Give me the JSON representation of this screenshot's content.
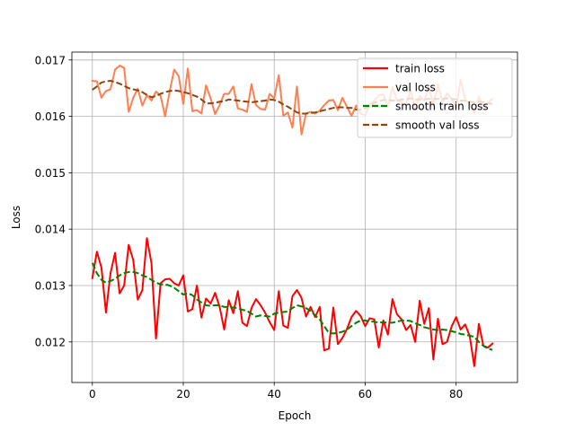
{
  "chart_data": {
    "type": "line",
    "xlabel": "Epoch",
    "ylabel": "Loss",
    "xlim": [
      -4.5,
      93.5
    ],
    "ylim": [
      0.01128,
      0.01714
    ],
    "xticks": [
      0,
      20,
      40,
      60,
      80
    ],
    "yticks": [
      0.012,
      0.013,
      0.014,
      0.015,
      0.016,
      0.017
    ],
    "ytick_labels": [
      "0.012",
      "0.013",
      "0.014",
      "0.015",
      "0.016",
      "0.017"
    ],
    "grid": true,
    "legend_position": "top-right",
    "series": [
      {
        "name": "train loss",
        "color": "#ff0000",
        "dash": "solid",
        "values": [
          0.01313,
          0.0136,
          0.01332,
          0.01252,
          0.01322,
          0.01358,
          0.01286,
          0.013,
          0.01372,
          0.01345,
          0.01275,
          0.01292,
          0.01384,
          0.0134,
          0.01206,
          0.01304,
          0.01311,
          0.01312,
          0.01304,
          0.013,
          0.01318,
          0.01254,
          0.01258,
          0.013,
          0.01243,
          0.01277,
          0.01268,
          0.01287,
          0.01262,
          0.01222,
          0.01274,
          0.01251,
          0.0129,
          0.01234,
          0.01228,
          0.0126,
          0.01276,
          0.01265,
          0.01252,
          0.01235,
          0.01221,
          0.0129,
          0.01229,
          0.01225,
          0.01281,
          0.01292,
          0.01278,
          0.01245,
          0.01262,
          0.01244,
          0.01262,
          0.01185,
          0.01188,
          0.01261,
          0.01196,
          0.01207,
          0.01223,
          0.01244,
          0.01255,
          0.01246,
          0.01228,
          0.01242,
          0.0124,
          0.0119,
          0.01238,
          0.01213,
          0.01276,
          0.01249,
          0.0124,
          0.01221,
          0.0123,
          0.012,
          0.01273,
          0.01232,
          0.0126,
          0.01169,
          0.01241,
          0.01196,
          0.012,
          0.01227,
          0.01244,
          0.01222,
          0.01231,
          0.0121,
          0.01157,
          0.01232,
          0.01193,
          0.0119,
          0.01197
        ]
      },
      {
        "name": "val loss",
        "color": "#ff7f50",
        "dash": "solid",
        "values": [
          0.01663,
          0.01662,
          0.01633,
          0.01645,
          0.01648,
          0.01683,
          0.0169,
          0.01686,
          0.01608,
          0.01633,
          0.01649,
          0.01619,
          0.01638,
          0.01628,
          0.01644,
          0.01637,
          0.016,
          0.01644,
          0.01683,
          0.01671,
          0.01622,
          0.01685,
          0.01609,
          0.01611,
          0.01605,
          0.01655,
          0.01632,
          0.01604,
          0.0162,
          0.0164,
          0.0164,
          0.01653,
          0.01614,
          0.01612,
          0.01608,
          0.01657,
          0.0162,
          0.01613,
          0.01612,
          0.0164,
          0.01632,
          0.01673,
          0.01601,
          0.01607,
          0.0158,
          0.01653,
          0.01568,
          0.01605,
          0.01608,
          0.01605,
          0.0161,
          0.0162,
          0.01628,
          0.01629,
          0.01611,
          0.01633,
          0.01617,
          0.01601,
          0.01619,
          0.01605,
          0.01602,
          0.0162,
          0.01628,
          0.01637,
          0.01639,
          0.01617,
          0.01652,
          0.01628,
          0.01625,
          0.01621,
          0.01647,
          0.01613,
          0.01636,
          0.01628,
          0.01651,
          0.01619,
          0.01657,
          0.01625,
          0.01641,
          0.01631,
          0.01615,
          0.01665,
          0.0163,
          0.01622,
          0.01606,
          0.01635,
          0.01616,
          0.01624,
          0.01631
        ]
      },
      {
        "name": "smooth train loss",
        "color": "#008000",
        "dash": "dashed",
        "values": [
          0.0134,
          0.01322,
          0.0131,
          0.01305,
          0.01308,
          0.01312,
          0.01318,
          0.01322,
          0.01324,
          0.01324,
          0.01322,
          0.01318,
          0.01315,
          0.0131,
          0.01305,
          0.01302,
          0.01302,
          0.013,
          0.01296,
          0.0129,
          0.01284,
          0.01286,
          0.01283,
          0.01275,
          0.0127,
          0.01265,
          0.01264,
          0.01265,
          0.01265,
          0.01262,
          0.01262,
          0.01261,
          0.0126,
          0.01257,
          0.01255,
          0.0125,
          0.01245,
          0.01247,
          0.01246,
          0.01245,
          0.0125,
          0.01252,
          0.01253,
          0.01254,
          0.0126,
          0.01265,
          0.01263,
          0.0126,
          0.01255,
          0.01247,
          0.0124,
          0.01228,
          0.01216,
          0.01215,
          0.01216,
          0.01218,
          0.01222,
          0.01228,
          0.01234,
          0.01238,
          0.01238,
          0.01236,
          0.01236,
          0.01234,
          0.01235,
          0.01234,
          0.01234,
          0.01236,
          0.01238,
          0.01238,
          0.01237,
          0.01233,
          0.0123,
          0.01226,
          0.01224,
          0.01222,
          0.01221,
          0.01222,
          0.01221,
          0.01219,
          0.01217,
          0.01214,
          0.01213,
          0.01211,
          0.01209,
          0.012,
          0.01193,
          0.01188,
          0.01186
        ]
      },
      {
        "name": "smooth val loss",
        "color": "#8b4513",
        "dash": "dashed",
        "values": [
          0.01647,
          0.01653,
          0.0166,
          0.01662,
          0.01663,
          0.01661,
          0.01658,
          0.01654,
          0.0165,
          0.01648,
          0.01646,
          0.01643,
          0.01638,
          0.01634,
          0.01636,
          0.0164,
          0.01643,
          0.01645,
          0.01646,
          0.01645,
          0.01643,
          0.01641,
          0.01638,
          0.01635,
          0.0163,
          0.01623,
          0.01623,
          0.01624,
          0.01626,
          0.01627,
          0.0163,
          0.01629,
          0.01628,
          0.01627,
          0.01626,
          0.01625,
          0.01626,
          0.01627,
          0.01628,
          0.0163,
          0.01629,
          0.01626,
          0.01621,
          0.01617,
          0.01612,
          0.01607,
          0.01605,
          0.01605,
          0.01606,
          0.01607,
          0.01609,
          0.01611,
          0.01613,
          0.01615,
          0.01616,
          0.01616,
          0.01615,
          0.01615,
          0.01612,
          0.01612,
          0.01614,
          0.01619,
          0.01624,
          0.01627,
          0.01629,
          0.01629,
          0.01628,
          0.01628,
          0.0163,
          0.0163,
          0.01632,
          0.0163,
          0.0163,
          0.0163,
          0.01631,
          0.01631,
          0.01631,
          0.01631,
          0.01632,
          0.01631,
          0.0163,
          0.01628,
          0.01628,
          0.01626,
          0.01625,
          0.01626,
          0.01625,
          0.01623,
          0.01622
        ]
      }
    ]
  }
}
